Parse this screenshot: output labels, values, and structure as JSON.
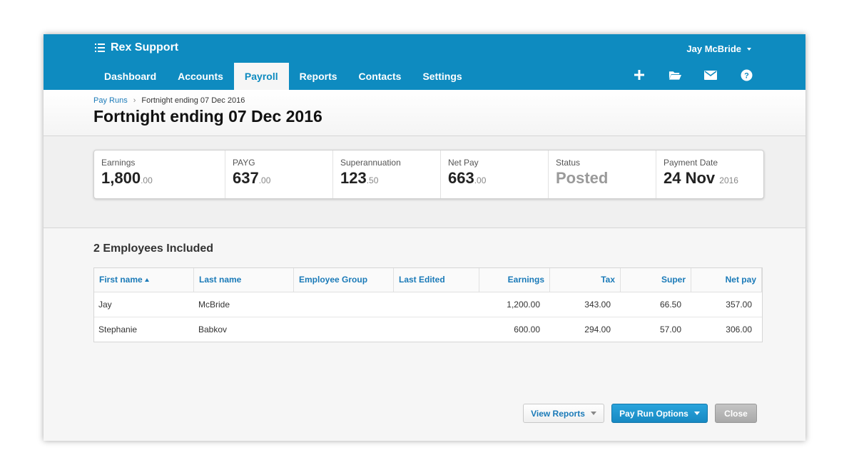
{
  "app": {
    "org_name": "Rex Support",
    "user_name": "Jay McBride"
  },
  "nav": {
    "items": [
      {
        "label": "Dashboard"
      },
      {
        "label": "Accounts"
      },
      {
        "label": "Payroll",
        "active": true
      },
      {
        "label": "Reports"
      },
      {
        "label": "Contacts"
      },
      {
        "label": "Settings"
      }
    ],
    "tools": [
      "plus-icon",
      "folder-icon",
      "mail-icon",
      "help-icon"
    ]
  },
  "breadcrumb": {
    "parent": "Pay Runs",
    "separator": "›",
    "current": "Fortnight ending 07 Dec 2016"
  },
  "page": {
    "title": "Fortnight ending 07 Dec 2016"
  },
  "summary": {
    "earnings": {
      "label": "Earnings",
      "main": "1,800",
      "sub": ".00"
    },
    "payg": {
      "label": "PAYG",
      "main": "637",
      "sub": ".00"
    },
    "super": {
      "label": "Superannuation",
      "main": "123",
      "sub": ".50"
    },
    "netpay": {
      "label": "Net Pay",
      "main": "663",
      "sub": ".00"
    },
    "status": {
      "label": "Status",
      "value": "Posted"
    },
    "payment_date": {
      "label": "Payment Date",
      "main": "24 Nov",
      "sub": "2016"
    }
  },
  "employees": {
    "heading": "2 Employees Included",
    "columns": {
      "first_name": "First name",
      "last_name": "Last name",
      "group": "Employee Group",
      "last_edited": "Last Edited",
      "earnings": "Earnings",
      "tax": "Tax",
      "super": "Super",
      "net_pay": "Net pay"
    },
    "rows": [
      {
        "first_name": "Jay",
        "last_name": "McBride",
        "group": "",
        "last_edited": "",
        "earnings": "1,200.00",
        "tax": "343.00",
        "super": "66.50",
        "net_pay": "357.00"
      },
      {
        "first_name": "Stephanie",
        "last_name": "Babkov",
        "group": "",
        "last_edited": "",
        "earnings": "600.00",
        "tax": "294.00",
        "super": "57.00",
        "net_pay": "306.00"
      }
    ]
  },
  "actions": {
    "view_reports": "View Reports",
    "pay_run_options": "Pay Run Options",
    "close": "Close"
  },
  "colors": {
    "brand": "#0e8bc0",
    "link": "#1a7ab8"
  }
}
